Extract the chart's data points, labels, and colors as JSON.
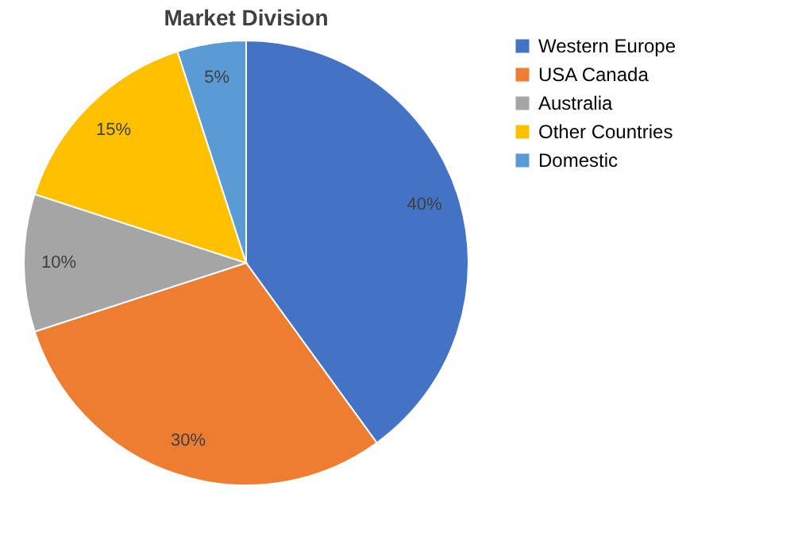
{
  "chart_data": {
    "type": "pie",
    "title": "Market Division",
    "categories": [
      "Western Europe",
      "USA Canada",
      "Australia",
      "Other Countries",
      "Domestic"
    ],
    "values": [
      40,
      30,
      10,
      15,
      5
    ],
    "value_labels": [
      "40%",
      "30%",
      "10%",
      "15%",
      "5%"
    ],
    "colors": [
      "#4472c4",
      "#ed7d31",
      "#a5a5a5",
      "#ffc000",
      "#5b9bd5"
    ],
    "legend": "right"
  }
}
